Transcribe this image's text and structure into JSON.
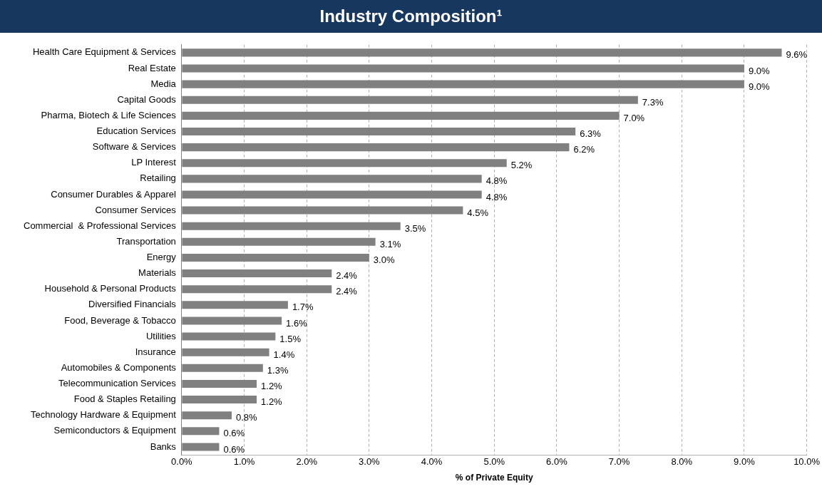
{
  "chart_data": {
    "type": "bar",
    "orientation": "horizontal",
    "title": "Industry Composition¹",
    "xlabel": "% of Private Equity",
    "categories": [
      "Health Care Equipment & Services",
      "Real Estate",
      "Media",
      "Capital Goods",
      "Pharma, Biotech & Life Sciences",
      "Education Services",
      "Software & Services",
      "LP Interest",
      "Retailing",
      "Consumer Durables & Apparel",
      "Consumer Services",
      "Commercial  & Professional Services",
      "Transportation",
      "Energy",
      "Materials",
      "Household & Personal Products",
      "Diversified Financials",
      "Food, Beverage & Tobacco",
      "Utilities",
      "Insurance",
      "Automobiles & Components",
      "Telecommunication Services",
      "Food & Staples Retailing",
      "Technology Hardware & Equipment",
      "Semiconductors & Equipment",
      "Banks"
    ],
    "values": [
      9.6,
      9.0,
      9.0,
      7.3,
      7.0,
      6.3,
      6.2,
      5.2,
      4.8,
      4.8,
      4.5,
      3.5,
      3.1,
      3.0,
      2.4,
      2.4,
      1.7,
      1.6,
      1.5,
      1.4,
      1.3,
      1.2,
      1.2,
      0.8,
      0.6,
      0.6
    ],
    "value_labels": [
      "9.6%",
      "9.0%",
      "9.0%",
      "7.3%",
      "7.0%",
      "6.3%",
      "6.2%",
      "5.2%",
      "4.8%",
      "4.8%",
      "4.5%",
      "3.5%",
      "3.1%",
      "3.0%",
      "2.4%",
      "2.4%",
      "1.7%",
      "1.6%",
      "1.5%",
      "1.4%",
      "1.3%",
      "1.2%",
      "1.2%",
      "0.8%",
      "0.6%",
      "0.6%"
    ],
    "color": "#808080",
    "xlim": [
      0,
      10
    ],
    "xticks": [
      {
        "value": 0,
        "label": "0.0%"
      },
      {
        "value": 1,
        "label": "1.0%"
      },
      {
        "value": 2,
        "label": "2.0%"
      },
      {
        "value": 3,
        "label": "3.0%"
      },
      {
        "value": 4,
        "label": "4.0%"
      },
      {
        "value": 5,
        "label": "5.0%"
      },
      {
        "value": 6,
        "label": "6.0%"
      },
      {
        "value": 7,
        "label": "7.0%"
      },
      {
        "value": 8,
        "label": "8.0%"
      },
      {
        "value": 9,
        "label": "9.0%"
      },
      {
        "value": 10,
        "label": "10.0%"
      }
    ],
    "grid": "x",
    "legend": false
  }
}
